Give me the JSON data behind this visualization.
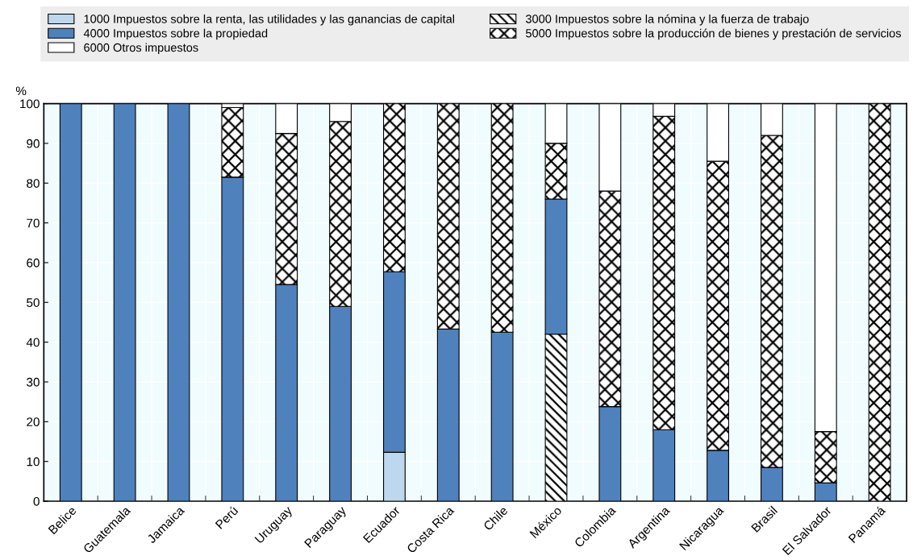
{
  "chart_data": {
    "type": "bar",
    "stacked": true,
    "ylabel": "%",
    "categories": [
      "Belice",
      "Guatemala",
      "Jamaica",
      "Perú",
      "Uruguay",
      "Paraguay",
      "Ecuador",
      "Costa Rica",
      "Chile",
      "México",
      "Colombia",
      "Argentina",
      "Nicaragua",
      "Brasil",
      "El Salvador",
      "Panamá"
    ],
    "series": [
      {
        "name": "1000 Impuestos sobre la renta, las utilidades y las ganancias de capital",
        "color": "#bdd7ee",
        "values": [
          0,
          0,
          0,
          0,
          0,
          0,
          12.3,
          0,
          0,
          0,
          0,
          0,
          0,
          0,
          0,
          0
        ]
      },
      {
        "name": "3000 Impuestos sobre la nómina y la fuerza de trabajo",
        "color": "#000000",
        "values": [
          0,
          0,
          0,
          0,
          0,
          0,
          0,
          0,
          0,
          42,
          0,
          0,
          0,
          0,
          0,
          0
        ]
      },
      {
        "name": "4000 Impuestos sobre la propiedad",
        "color": "#4f81bd",
        "values": [
          100,
          100,
          100,
          81.5,
          54.5,
          49,
          45.4,
          43.3,
          42.5,
          34,
          23.8,
          18,
          12.8,
          8.5,
          4.6,
          0
        ]
      },
      {
        "name": "5000 Impuestos sobre la producción de bienes y prestación de servicios",
        "color": "#000000",
        "values": [
          0,
          0,
          0,
          17.5,
          38,
          46.5,
          42.3,
          56.7,
          57.5,
          14,
          54.2,
          78.8,
          72.7,
          83.5,
          12.9,
          100
        ]
      },
      {
        "name": "6000 Otros impuestos",
        "color": "#ffffff",
        "values": [
          0,
          0,
          0,
          1,
          7.5,
          4.5,
          0,
          0,
          0,
          10,
          22,
          3.2,
          14.5,
          8,
          82.5,
          0
        ]
      }
    ],
    "ylim": [
      0,
      100
    ],
    "yticks": [
      0,
      10,
      20,
      30,
      40,
      50,
      60,
      70,
      80,
      90,
      100
    ],
    "grid": true,
    "legend": "top"
  }
}
